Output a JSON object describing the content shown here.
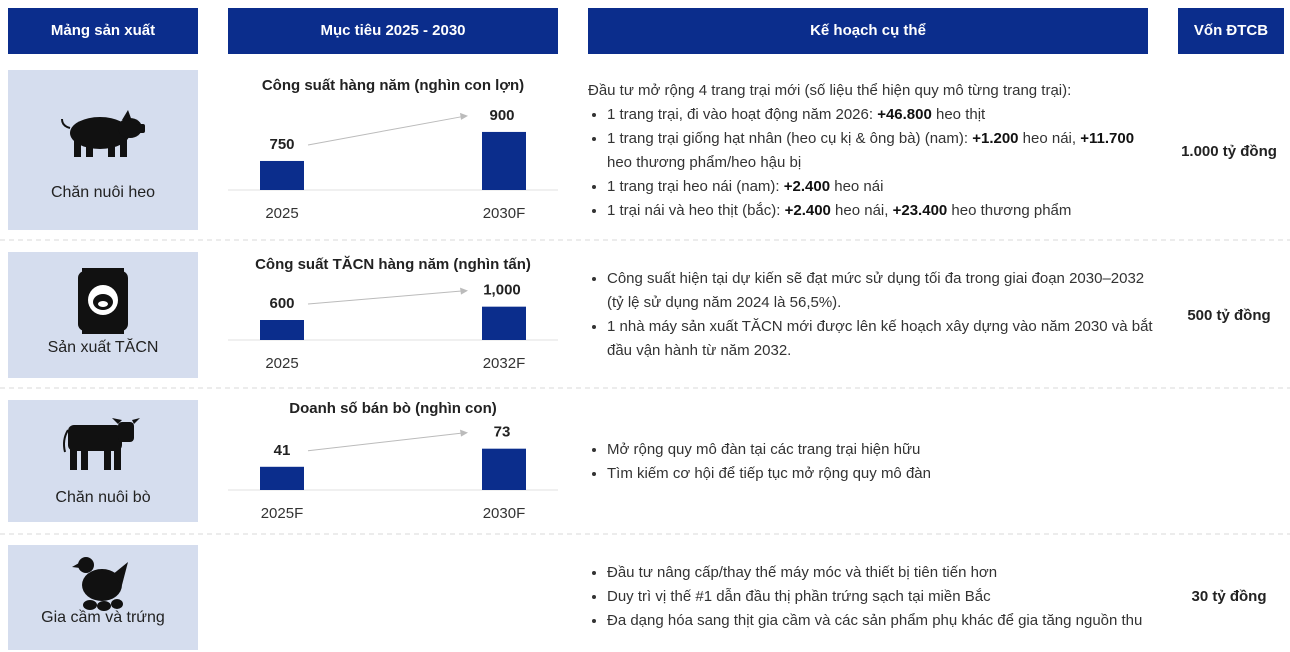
{
  "header": {
    "columns": [
      "Mảng sản xuất",
      "Mục tiêu 2025 - 2030",
      "Kế hoạch cụ thể",
      "Vốn ĐTCB"
    ]
  },
  "rows": [
    {
      "segment": "Chăn nuôi heo",
      "chart": {
        "type": "bar",
        "title": "Công suất hàng năm (nghìn con lợn)",
        "categories": [
          "2025",
          "2030F"
        ],
        "values": [
          750,
          900
        ],
        "color": "#0b2d8c",
        "ylim": [
          600,
          910
        ]
      },
      "plan": {
        "intro": "Đầu tư mở rộng 4 trang trại mới (số liệu thể hiện quy mô từng trang trại):",
        "bullets": [
          [
            {
              "text": "1 trang trại, đi vào hoạt động năm 2026: "
            },
            {
              "text": "+46.800",
              "bold": true
            },
            {
              "text": " heo thịt"
            }
          ],
          [
            {
              "text": "1 trang trại giống hạt nhân (heo cụ kị & ông bà) (nam): "
            },
            {
              "text": "+1.200",
              "bold": true
            },
            {
              "text": " heo nái, "
            },
            {
              "text": "+11.700",
              "bold": true
            },
            {
              "text": " heo thương phẩm/heo hậu bị"
            }
          ],
          [
            {
              "text": "1 trang trại heo nái (nam): "
            },
            {
              "text": "+2.400",
              "bold": true
            },
            {
              "text": " heo nái"
            }
          ],
          [
            {
              "text": "1 trại nái và heo thịt (bắc): "
            },
            {
              "text": "+2.400",
              "bold": true
            },
            {
              "text": " heo nái, "
            },
            {
              "text": "+23.400",
              "bold": true
            },
            {
              "text": " heo thương phẩm"
            }
          ]
        ]
      },
      "capital": "1.000 tỷ đồng"
    },
    {
      "segment": "Sản xuất TĂCN",
      "chart": {
        "type": "bar",
        "title": "Công suất TĂCN hàng năm (nghìn tấn)",
        "categories": [
          "2025",
          "2032F"
        ],
        "values": [
          600,
          1000
        ],
        "value_labels": [
          "600",
          "1,000"
        ],
        "color": "#0b2d8c",
        "ylim": [
          0,
          1800
        ]
      },
      "plan": {
        "bullets": [
          [
            {
              "text": "Công suất hiện tại dự kiến sẽ đạt mức sử dụng tối đa trong giai đoạn 2030–2032 (tỷ lệ sử dụng năm 2024 là 56,5%)."
            }
          ],
          [
            {
              "text": "1 nhà máy sản xuất TĂCN mới được lên kế hoạch xây dựng vào năm 2030 và bắt đầu vận hành từ năm 2032."
            }
          ]
        ]
      },
      "capital": "500 tỷ đồng"
    },
    {
      "segment": "Chăn nuôi bò",
      "chart": {
        "type": "bar",
        "title": "Doanh số bán bò (nghìn con)",
        "categories": [
          "2025F",
          "2030F"
        ],
        "values": [
          41,
          73
        ],
        "color": "#0b2d8c",
        "ylim": [
          0,
          106
        ]
      },
      "plan": {
        "bullets": [
          [
            {
              "text": "Mở rộng quy mô đàn tại các trang trại hiện hữu"
            }
          ],
          [
            {
              "text": "Tìm kiếm cơ hội để tiếp tục mở rộng quy mô đàn"
            }
          ]
        ]
      }
    },
    {
      "segment": "Gia cầm và trứng",
      "plan": {
        "bullets": [
          [
            {
              "text": "Đầu tư nâng cấp/thay thế máy móc và thiết bị tiên tiến hơn"
            }
          ],
          [
            {
              "text": "Duy trì vị thế #1 dẫn đầu thị phần trứng sạch tại miền Bắc"
            }
          ],
          [
            {
              "text": "Đa dạng hóa sang thịt gia cầm và các sản phẩm phụ khác để gia tăng nguồn thu"
            }
          ]
        ]
      },
      "capital": "30 tỷ đồng"
    }
  ]
}
